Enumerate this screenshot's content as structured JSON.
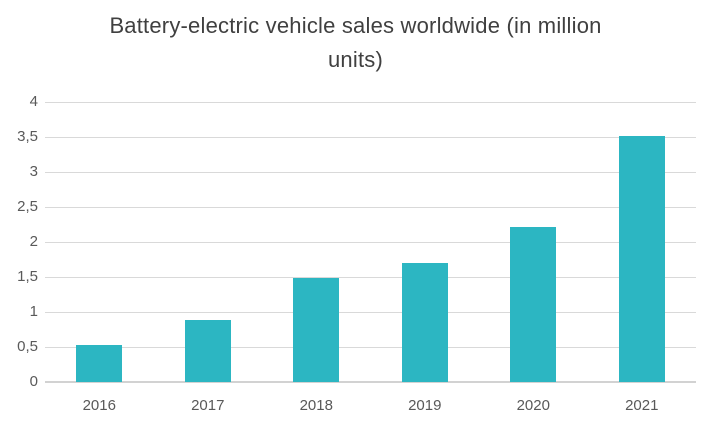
{
  "chart_data": {
    "type": "bar",
    "title": "Battery-electric vehicle sales worldwide (in million units)",
    "categories": [
      "2016",
      "2017",
      "2018",
      "2019",
      "2020",
      "2021"
    ],
    "values": [
      0.53,
      0.88,
      1.48,
      1.7,
      2.22,
      3.51
    ],
    "xlabel": "",
    "ylabel": "",
    "ylim": [
      0,
      4
    ],
    "y_ticks": [
      0,
      0.5,
      1,
      1.5,
      2,
      2.5,
      3,
      3.5,
      4
    ],
    "y_tick_labels": [
      "0",
      "0,5",
      "1",
      "1,5",
      "2",
      "2,5",
      "3",
      "3,5",
      "4"
    ],
    "grid": true,
    "legend": false,
    "colors": {
      "bar": "#2CB6C2",
      "title_text": "#404040",
      "axis_text": "#595959",
      "gridline": "#D9D9D9",
      "axis_line": "#D2D2D2",
      "background": "#FFFFFF"
    }
  }
}
